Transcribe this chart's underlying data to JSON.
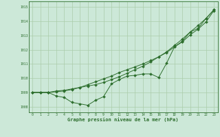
{
  "x": [
    0,
    1,
    2,
    3,
    4,
    5,
    6,
    7,
    8,
    9,
    10,
    11,
    12,
    13,
    14,
    15,
    16,
    17,
    18,
    19,
    20,
    21,
    22,
    23
  ],
  "line1": [
    1009.0,
    1009.0,
    1009.0,
    1009.1,
    1009.15,
    1009.25,
    1009.35,
    1009.45,
    1009.55,
    1009.7,
    1009.9,
    1010.1,
    1010.35,
    1010.6,
    1010.85,
    1011.15,
    1011.5,
    1011.85,
    1012.3,
    1012.75,
    1013.25,
    1013.7,
    1014.2,
    1014.8
  ],
  "line2": [
    1009.0,
    1009.0,
    1009.0,
    1008.75,
    1008.65,
    1008.3,
    1008.2,
    1008.1,
    1008.45,
    1008.7,
    1009.6,
    1009.9,
    1010.15,
    1010.2,
    1010.3,
    1010.3,
    1010.05,
    1011.05,
    1012.2,
    1012.6,
    1013.25,
    1013.5,
    1014.2,
    1014.8
  ],
  "line3": [
    1009.0,
    1009.0,
    1009.0,
    1009.05,
    1009.1,
    1009.2,
    1009.35,
    1009.55,
    1009.75,
    1009.95,
    1010.15,
    1010.4,
    1010.6,
    1010.8,
    1011.0,
    1011.25,
    1011.5,
    1011.8,
    1012.2,
    1012.55,
    1013.05,
    1013.45,
    1013.95,
    1014.75
  ],
  "bg_color": "#cce8d8",
  "grid_color": "#aaccaa",
  "line_color": "#2d6e2d",
  "marker_size": 2.0,
  "title": "Graphe pression niveau de la mer (hPa)",
  "ylabel_ticks": [
    1008,
    1009,
    1010,
    1011,
    1012,
    1013,
    1014,
    1015
  ],
  "ylim": [
    1007.6,
    1015.4
  ],
  "xlim": [
    -0.5,
    23.5
  ],
  "xlabel_ticks": [
    0,
    1,
    2,
    3,
    4,
    5,
    6,
    7,
    8,
    9,
    10,
    11,
    12,
    13,
    14,
    15,
    16,
    17,
    18,
    19,
    20,
    21,
    22,
    23
  ]
}
